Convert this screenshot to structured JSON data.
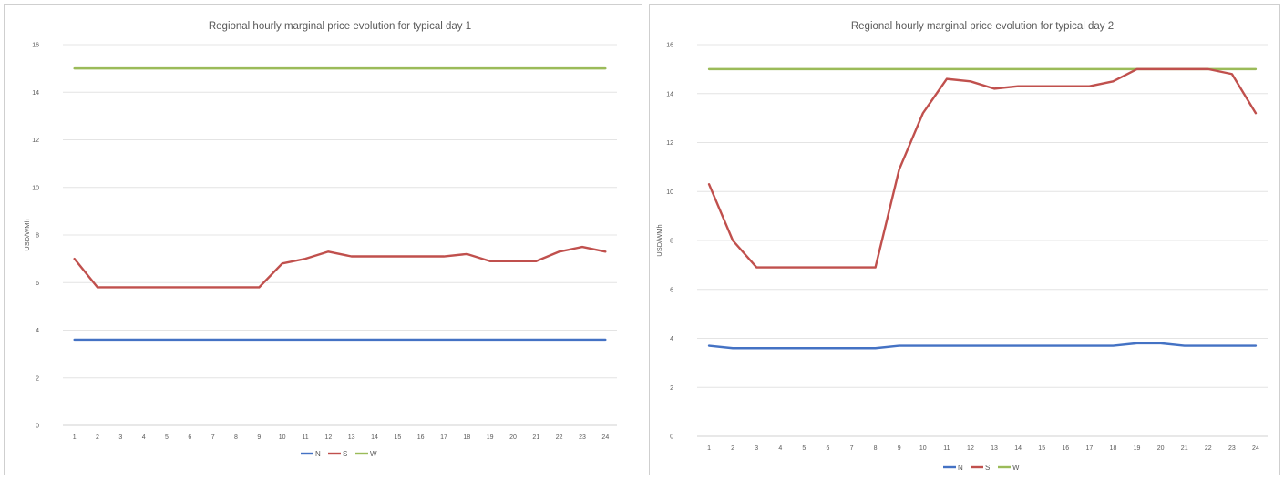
{
  "chart_data": [
    {
      "type": "line",
      "title": "Regional hourly marginal price evolution for typical day 1",
      "xlabel": "",
      "ylabel": "USD/WMh",
      "ylim": [
        0,
        16
      ],
      "yticks": [
        0,
        2,
        4,
        6,
        8,
        10,
        12,
        14,
        16
      ],
      "categories": [
        "1",
        "2",
        "3",
        "4",
        "5",
        "6",
        "7",
        "8",
        "9",
        "10",
        "11",
        "12",
        "13",
        "14",
        "15",
        "16",
        "17",
        "18",
        "19",
        "20",
        "21",
        "22",
        "23",
        "24"
      ],
      "grid": true,
      "legend_position": "bottom",
      "series": [
        {
          "name": "N",
          "color": "#4472c4",
          "values": [
            3.6,
            3.6,
            3.6,
            3.6,
            3.6,
            3.6,
            3.6,
            3.6,
            3.6,
            3.6,
            3.6,
            3.6,
            3.6,
            3.6,
            3.6,
            3.6,
            3.6,
            3.6,
            3.6,
            3.6,
            3.6,
            3.6,
            3.6,
            3.6
          ]
        },
        {
          "name": "S",
          "color": "#c0504d",
          "values": [
            7.0,
            5.8,
            5.8,
            5.8,
            5.8,
            5.8,
            5.8,
            5.8,
            5.8,
            6.8,
            7.0,
            7.3,
            7.1,
            7.1,
            7.1,
            7.1,
            7.1,
            7.2,
            6.9,
            6.9,
            6.9,
            7.3,
            7.5,
            7.3
          ]
        },
        {
          "name": "W",
          "color": "#9bbb59",
          "values": [
            15,
            15,
            15,
            15,
            15,
            15,
            15,
            15,
            15,
            15,
            15,
            15,
            15,
            15,
            15,
            15,
            15,
            15,
            15,
            15,
            15,
            15,
            15,
            15
          ]
        }
      ]
    },
    {
      "type": "line",
      "title": "Regional hourly marginal price evolution for typical day 2",
      "xlabel": "",
      "ylabel": "USD/WMh",
      "ylim": [
        0,
        16
      ],
      "yticks": [
        0,
        2,
        4,
        6,
        8,
        10,
        12,
        14,
        16
      ],
      "categories": [
        "1",
        "2",
        "3",
        "4",
        "5",
        "6",
        "7",
        "8",
        "9",
        "10",
        "11",
        "12",
        "13",
        "14",
        "15",
        "16",
        "17",
        "18",
        "19",
        "20",
        "21",
        "22",
        "23",
        "24"
      ],
      "grid": true,
      "legend_position": "bottom",
      "series": [
        {
          "name": "N",
          "color": "#4472c4",
          "values": [
            3.7,
            3.6,
            3.6,
            3.6,
            3.6,
            3.6,
            3.6,
            3.6,
            3.7,
            3.7,
            3.7,
            3.7,
            3.7,
            3.7,
            3.7,
            3.7,
            3.7,
            3.7,
            3.8,
            3.8,
            3.7,
            3.7,
            3.7,
            3.7
          ]
        },
        {
          "name": "S",
          "color": "#c0504d",
          "values": [
            10.3,
            8.0,
            6.9,
            6.9,
            6.9,
            6.9,
            6.9,
            6.9,
            10.9,
            13.2,
            14.6,
            14.5,
            14.2,
            14.3,
            14.3,
            14.3,
            14.3,
            14.5,
            15.0,
            15.0,
            15.0,
            15.0,
            14.8,
            13.2
          ]
        },
        {
          "name": "W",
          "color": "#9bbb59",
          "values": [
            15,
            15,
            15,
            15,
            15,
            15,
            15,
            15,
            15,
            15,
            15,
            15,
            15,
            15,
            15,
            15,
            15,
            15,
            15,
            15,
            15,
            15,
            15,
            15
          ]
        }
      ]
    }
  ]
}
